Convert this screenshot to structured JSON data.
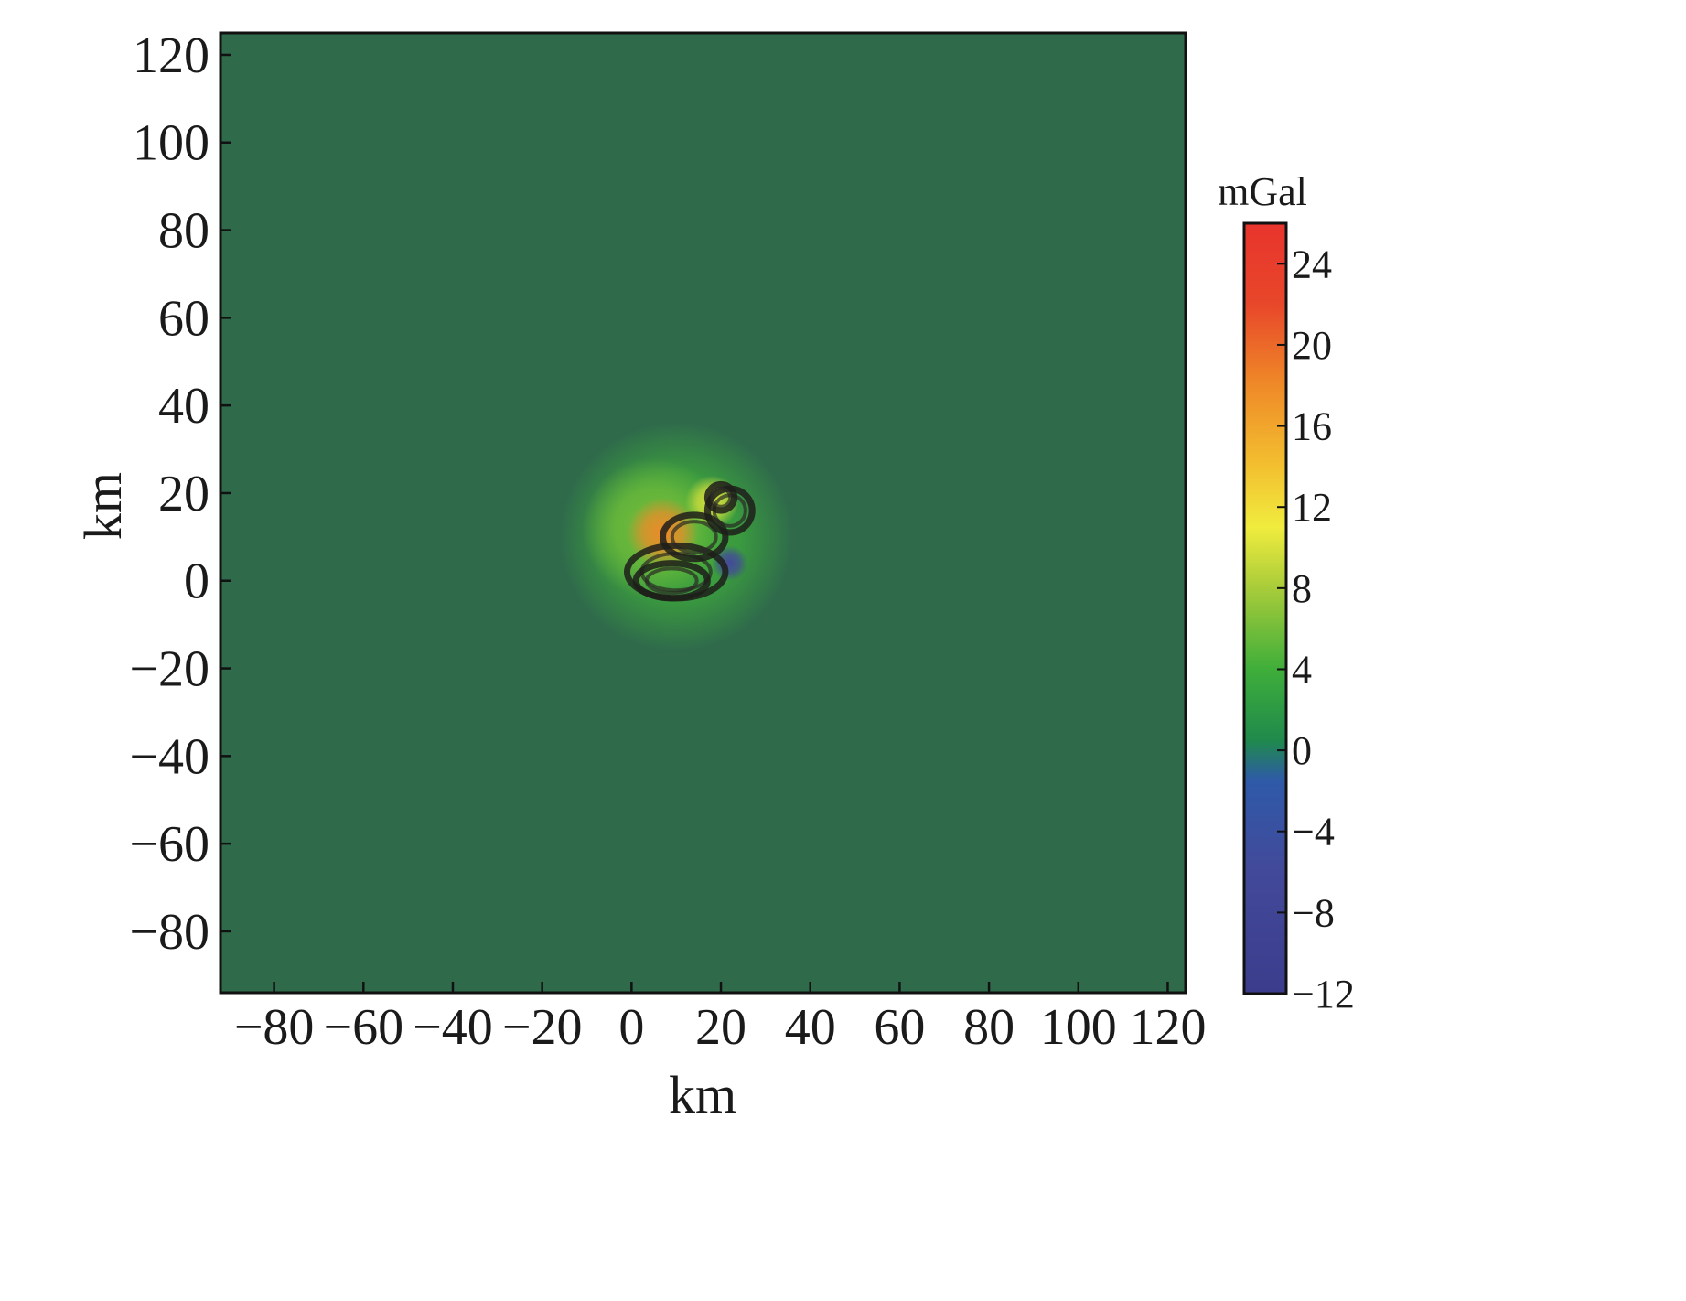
{
  "chart_data": {
    "type": "heatmap",
    "title": "",
    "xlabel": "km",
    "ylabel": "km",
    "xlim": [
      -92,
      124
    ],
    "ylim": [
      -94,
      125
    ],
    "xticks": [
      -80,
      -60,
      -40,
      -20,
      0,
      20,
      40,
      60,
      80,
      100,
      120
    ],
    "yticks": [
      -80,
      -60,
      -40,
      -20,
      0,
      20,
      40,
      60,
      80,
      100,
      120
    ],
    "xtick_labels": [
      "−80",
      "−60",
      "−40",
      "−20",
      "0",
      "20",
      "40",
      "60",
      "80",
      "100",
      "120"
    ],
    "ytick_labels": [
      "−80",
      "−60",
      "−40",
      "−20",
      "0",
      "20",
      "40",
      "60",
      "80",
      "100",
      "120"
    ],
    "background_value": 0,
    "colorbar": {
      "unit": "mGal",
      "range": [
        -12,
        26
      ],
      "ticks": [
        -12,
        -8,
        -4,
        0,
        4,
        8,
        12,
        16,
        20,
        24
      ],
      "tick_labels": [
        "−12",
        "−8",
        "−4",
        "0",
        "4",
        "8",
        "12",
        "16",
        "20",
        "24"
      ],
      "stops": [
        {
          "value": -12,
          "color": "#3b3c8c"
        },
        {
          "value": -6,
          "color": "#43499a"
        },
        {
          "value": -1.5,
          "color": "#2e5aa8"
        },
        {
          "value": 0.5,
          "color": "#1f8a4c"
        },
        {
          "value": 4,
          "color": "#3fae3a"
        },
        {
          "value": 8,
          "color": "#a8cc3a"
        },
        {
          "value": 11,
          "color": "#f0ec3e"
        },
        {
          "value": 14,
          "color": "#f3c030"
        },
        {
          "value": 18,
          "color": "#ef8a28"
        },
        {
          "value": 22,
          "color": "#e8472a"
        },
        {
          "value": 26,
          "color": "#e8342d"
        }
      ]
    },
    "anomalies": [
      {
        "x": 10,
        "y": 10,
        "sigma": 13,
        "value": 4
      },
      {
        "x": 5,
        "y": 12,
        "sigma": 8,
        "value": 6
      },
      {
        "x": 7,
        "y": 11,
        "sigma": 4,
        "value": 18
      },
      {
        "x": 18,
        "y": 18,
        "sigma": 3,
        "value": 10
      },
      {
        "x": 22,
        "y": 4,
        "sigma": 2,
        "value": -6
      }
    ],
    "dark_rings": [
      {
        "x": 10,
        "y": 2,
        "rx": 11,
        "ry": 6
      },
      {
        "x": 9,
        "y": 0,
        "rx": 8,
        "ry": 4
      },
      {
        "x": 14,
        "y": 10,
        "rx": 7,
        "ry": 5
      },
      {
        "x": 22,
        "y": 16,
        "rx": 5,
        "ry": 5
      },
      {
        "x": 20,
        "y": 19,
        "rx": 3,
        "ry": 3
      }
    ]
  }
}
